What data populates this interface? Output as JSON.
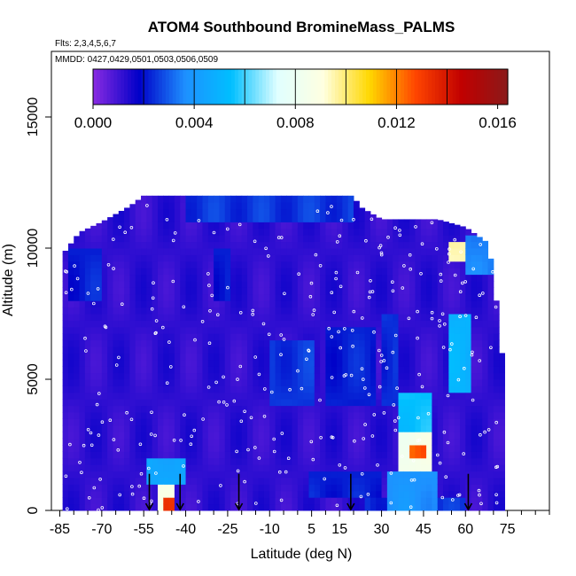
{
  "chart_data": {
    "type": "heatmap",
    "title": "ATOM4 Southbound BromineMass_PALMS",
    "flights_text": "Flts: 2,3,4,5,6,7",
    "dates_text": "MMDD: 0427,0429,0501,0503,0506,0509",
    "xlabel": "Latitude (deg N)",
    "ylabel": "Altitude (m)",
    "xlim": [
      -88,
      90
    ],
    "ylim": [
      0,
      17500
    ],
    "x_ticks": [
      -85,
      -70,
      -55,
      -40,
      -25,
      -10,
      5,
      15,
      30,
      45,
      60,
      75
    ],
    "x_tick_labels": [
      "-85",
      "-70",
      "-55",
      "-40",
      "-25",
      "-10",
      "5",
      "15",
      "30",
      "45",
      "60",
      "75"
    ],
    "y_ticks": [
      0,
      5000,
      10000,
      15000
    ],
    "y_tick_labels": [
      "0",
      "5000",
      "10000",
      "15000"
    ],
    "colorbar": {
      "min": 0.0,
      "max": 0.0164,
      "tick_values": [
        0.0,
        0.004,
        0.008,
        0.012,
        0.016
      ],
      "tick_labels": [
        "0.000",
        "0.004",
        "0.008",
        "0.012",
        "0.016"
      ],
      "band_edges": [
        0.0,
        0.002,
        0.004,
        0.006,
        0.008,
        0.01,
        0.012,
        0.014,
        0.0164
      ],
      "colors": [
        "#8a2be2",
        "#0000c8",
        "#1e90ff",
        "#00bfff",
        "#e0ffff",
        "#ffffe0",
        "#ffd700",
        "#ff4500",
        "#c00000",
        "#8b1a1a"
      ]
    },
    "background_value": 0.0012,
    "grid": false,
    "profile_envelope": [
      {
        "lat": -83,
        "lo": 0,
        "hi": 9900
      },
      {
        "lat": -78,
        "lo": 0,
        "hi": 10600
      },
      {
        "lat": -70,
        "lo": 0,
        "hi": 11000
      },
      {
        "lat": -60,
        "lo": 0,
        "hi": 11600
      },
      {
        "lat": -55,
        "lo": 0,
        "hi": 12000
      },
      {
        "lat": -30,
        "lo": 0,
        "hi": 12000
      },
      {
        "lat": 20,
        "lo": 0,
        "hi": 12000
      },
      {
        "lat": 22,
        "lo": 0,
        "hi": 11600
      },
      {
        "lat": 30,
        "lo": 0,
        "hi": 11100
      },
      {
        "lat": 50,
        "lo": 0,
        "hi": 11100
      },
      {
        "lat": 60,
        "lo": 0,
        "hi": 10800
      },
      {
        "lat": 68,
        "lo": 0,
        "hi": 10200
      },
      {
        "lat": 70,
        "lo": 0,
        "hi": 9000
      },
      {
        "lat": 73,
        "lo": 0,
        "hi": 6000
      },
      {
        "lat": 74,
        "lo": 0,
        "hi": 0
      }
    ],
    "features": [
      {
        "lat_min": -50,
        "lat_max": -44,
        "alt_min": 0,
        "alt_max": 1000,
        "value": 0.0085
      },
      {
        "lat_min": -48,
        "lat_max": -45,
        "alt_min": 0,
        "alt_max": 450,
        "value": 0.013
      },
      {
        "lat_min": -54,
        "lat_max": -40,
        "alt_min": 1000,
        "alt_max": 2000,
        "value": 0.0045
      },
      {
        "lat_min": 36,
        "lat_max": 48,
        "alt_min": 1500,
        "alt_max": 3000,
        "value": 0.0085
      },
      {
        "lat_min": 40,
        "lat_max": 45,
        "alt_min": 2000,
        "alt_max": 2600,
        "value": 0.0125
      },
      {
        "lat_min": 36,
        "lat_max": 48,
        "alt_min": 3000,
        "alt_max": 4500,
        "value": 0.0055
      },
      {
        "lat_min": 32,
        "lat_max": 50,
        "alt_min": 0,
        "alt_max": 1500,
        "value": 0.0038
      },
      {
        "lat_min": 54,
        "lat_max": 62,
        "alt_min": 4500,
        "alt_max": 7500,
        "value": 0.005
      },
      {
        "lat_min": 55,
        "lat_max": 60,
        "alt_min": 9500,
        "alt_max": 10200,
        "value": 0.0095
      },
      {
        "lat_min": 60,
        "lat_max": 70,
        "alt_min": 9000,
        "alt_max": 10500,
        "value": 0.0035
      },
      {
        "lat_min": -40,
        "lat_max": 20,
        "alt_min": 11000,
        "alt_max": 12000,
        "value": 0.0025
      },
      {
        "lat_min": -10,
        "lat_max": 5,
        "alt_min": 4000,
        "alt_max": 6500,
        "value": 0.0025
      },
      {
        "lat_min": 10,
        "lat_max": 28,
        "alt_min": 4000,
        "alt_max": 7000,
        "value": 0.0022
      },
      {
        "lat_min": 30,
        "lat_max": 36,
        "alt_min": 4000,
        "alt_max": 7500,
        "value": 0.0024
      },
      {
        "lat_min": -82,
        "lat_max": -70,
        "alt_min": 8000,
        "alt_max": 10000,
        "value": 0.0022
      },
      {
        "lat_min": -30,
        "lat_max": -24,
        "alt_min": 8000,
        "alt_max": 10000,
        "value": 0.0022
      },
      {
        "lat_min": 25,
        "lat_max": 60,
        "alt_min": 0,
        "alt_max": 500,
        "value": 0.0024
      },
      {
        "lat_min": 5,
        "lat_max": 30,
        "alt_min": 500,
        "alt_max": 1500,
        "value": 0.0022
      }
    ],
    "arrow_latitudes": [
      -53,
      -42,
      -21,
      19,
      61
    ],
    "arrow_length_m": 900
  }
}
